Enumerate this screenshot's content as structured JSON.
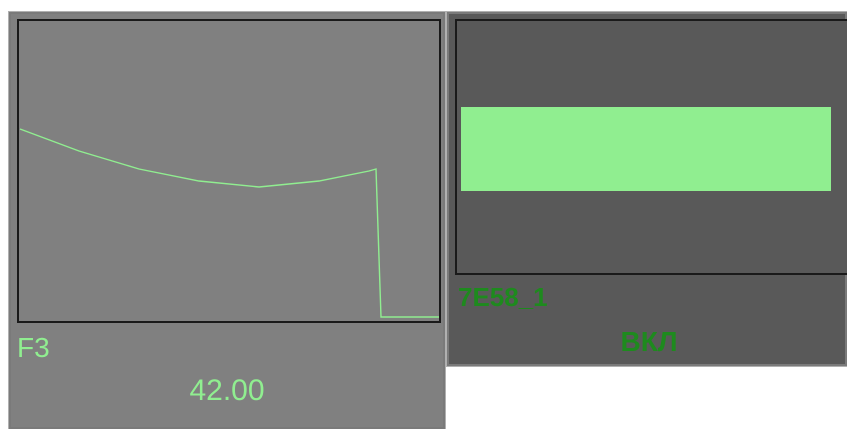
{
  "left_panel": {
    "label": "F3",
    "value": "42.00",
    "trace_color": "#90ee90",
    "background": "#808080"
  },
  "right_panel": {
    "label": "7E58_1",
    "status": "ВКЛ",
    "bar_color": "#90ee90",
    "text_color": "#1e8a1e",
    "background": "#595959"
  }
}
